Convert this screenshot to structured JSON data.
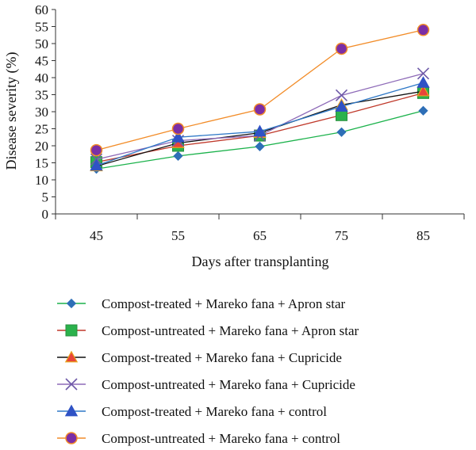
{
  "chart_data": {
    "type": "line",
    "title": "",
    "xlabel": "Days after transplanting",
    "ylabel": "Disease severity (%)",
    "x": [
      45,
      55,
      65,
      75,
      85
    ],
    "x_tick_labels": [
      "45",
      "55",
      "65",
      "75",
      "85"
    ],
    "y_ticks": [
      0,
      5,
      10,
      15,
      20,
      25,
      30,
      35,
      40,
      45,
      50,
      55,
      60
    ],
    "y_tick_labels": [
      "0",
      "5",
      "10",
      "15",
      "20",
      "25",
      "30",
      "35",
      "40",
      "45",
      "50",
      "55",
      "60"
    ],
    "xlim": [
      40,
      90
    ],
    "ylim": [
      0,
      60
    ],
    "grid": false,
    "legend_position": "bottom",
    "series": [
      {
        "name": "Compost-treated + Mareko fana + Apron star",
        "values": [
          13.2,
          17.0,
          19.8,
          24.0,
          30.3
        ],
        "color": "#1bb24b",
        "marker": "diamond",
        "marker_color": "#2e6fb7"
      },
      {
        "name": "Compost-untreated + Mareko fana + Apron star",
        "values": [
          15.2,
          20.0,
          23.0,
          29.0,
          35.5
        ],
        "color": "#c0392b",
        "marker": "square",
        "marker_color": "#2bb24c"
      },
      {
        "name": "Compost-treated + Mareko fana + Cupricide",
        "values": [
          14.0,
          20.8,
          23.8,
          32.0,
          36.0
        ],
        "color": "#111111",
        "marker": "triangle",
        "marker_color": "#e8443a",
        "marker_stroke": "#e8a21d"
      },
      {
        "name": "Compost-untreated + Mareko fana + Cupricide",
        "values": [
          16.0,
          21.5,
          23.0,
          34.8,
          41.2
        ],
        "color": "#8e6bb8",
        "marker": "x",
        "marker_color": "#6e5aa8"
      },
      {
        "name": "Compost-treated + Mareko fana + control",
        "values": [
          14.2,
          22.5,
          24.2,
          31.5,
          38.5
        ],
        "color": "#2e78c7",
        "marker": "triangle",
        "marker_color": "#2f52c5"
      },
      {
        "name": "Compost-untreated + Mareko fana + control",
        "values": [
          18.7,
          25.0,
          30.7,
          48.5,
          54.0
        ],
        "color": "#f28c28",
        "marker": "circle",
        "marker_color": "#7b2ea6",
        "marker_stroke": "#f28c28"
      }
    ]
  }
}
